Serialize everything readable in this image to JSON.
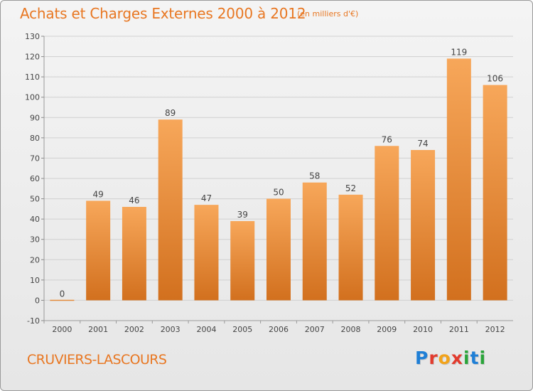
{
  "title": "Achats et Charges Externes 2000 à 2012",
  "subtitle": "(en milliers d'€)",
  "commune": "CRUVIERS-LASCOURS",
  "logo": {
    "text": "Proxiti",
    "letters": [
      "P",
      "r",
      "o",
      "x",
      "i",
      "t",
      "i"
    ],
    "colors": [
      "#1f7fd6",
      "#e23b2e",
      "#f2a31b",
      "#e23b2e",
      "#2aa43a",
      "#1f7fd6",
      "#2aa43a"
    ]
  },
  "colors": {
    "accent": "#e87722",
    "bar_light": "#f7a75a",
    "bar_dark": "#d2701e",
    "grid": "#d0d0d0"
  },
  "chart_data": {
    "type": "bar",
    "categories": [
      "2000",
      "2001",
      "2002",
      "2003",
      "2004",
      "2005",
      "2006",
      "2007",
      "2008",
      "2009",
      "2010",
      "2011",
      "2012"
    ],
    "values": [
      0,
      49,
      46,
      89,
      47,
      39,
      50,
      58,
      52,
      76,
      74,
      119,
      106
    ],
    "ylim": [
      -10,
      130
    ],
    "yticks": [
      -10,
      0,
      10,
      20,
      30,
      40,
      50,
      60,
      70,
      80,
      90,
      100,
      110,
      120,
      130
    ],
    "grid": true,
    "data_labels": true
  }
}
